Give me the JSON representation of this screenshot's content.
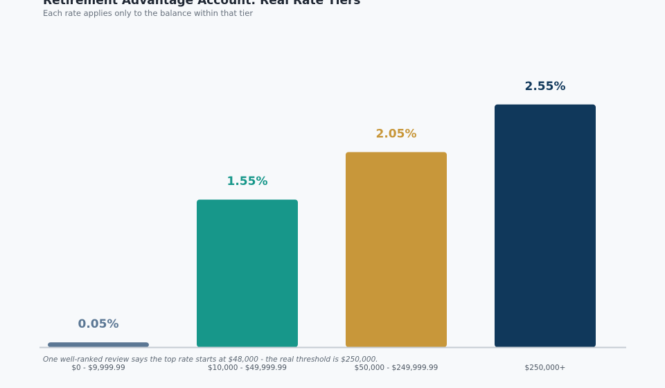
{
  "chart_data": {
    "type": "bar",
    "title": "Retirement Advantage Account: Real Rate Tiers",
    "subtitle": "Each rate applies only to the balance within that tier",
    "categories": [
      "$0 - $9,999.99",
      "$10,000 - $49,999.99",
      "$50,000 - $249,999.99",
      "$250,000+"
    ],
    "values": [
      0.05,
      1.55,
      2.05,
      2.55
    ],
    "value_labels": [
      "0.05%",
      "1.55%",
      "2.05%",
      "2.55%"
    ],
    "colors": [
      "#5b7794",
      "#17978a",
      "#c8973a",
      "#10385b"
    ],
    "ylim": [
      0,
      3.0
    ],
    "grid": false,
    "annotation": "One well-ranked review says the top rate starts at $48,000 - the real threshold is $250,000."
  }
}
